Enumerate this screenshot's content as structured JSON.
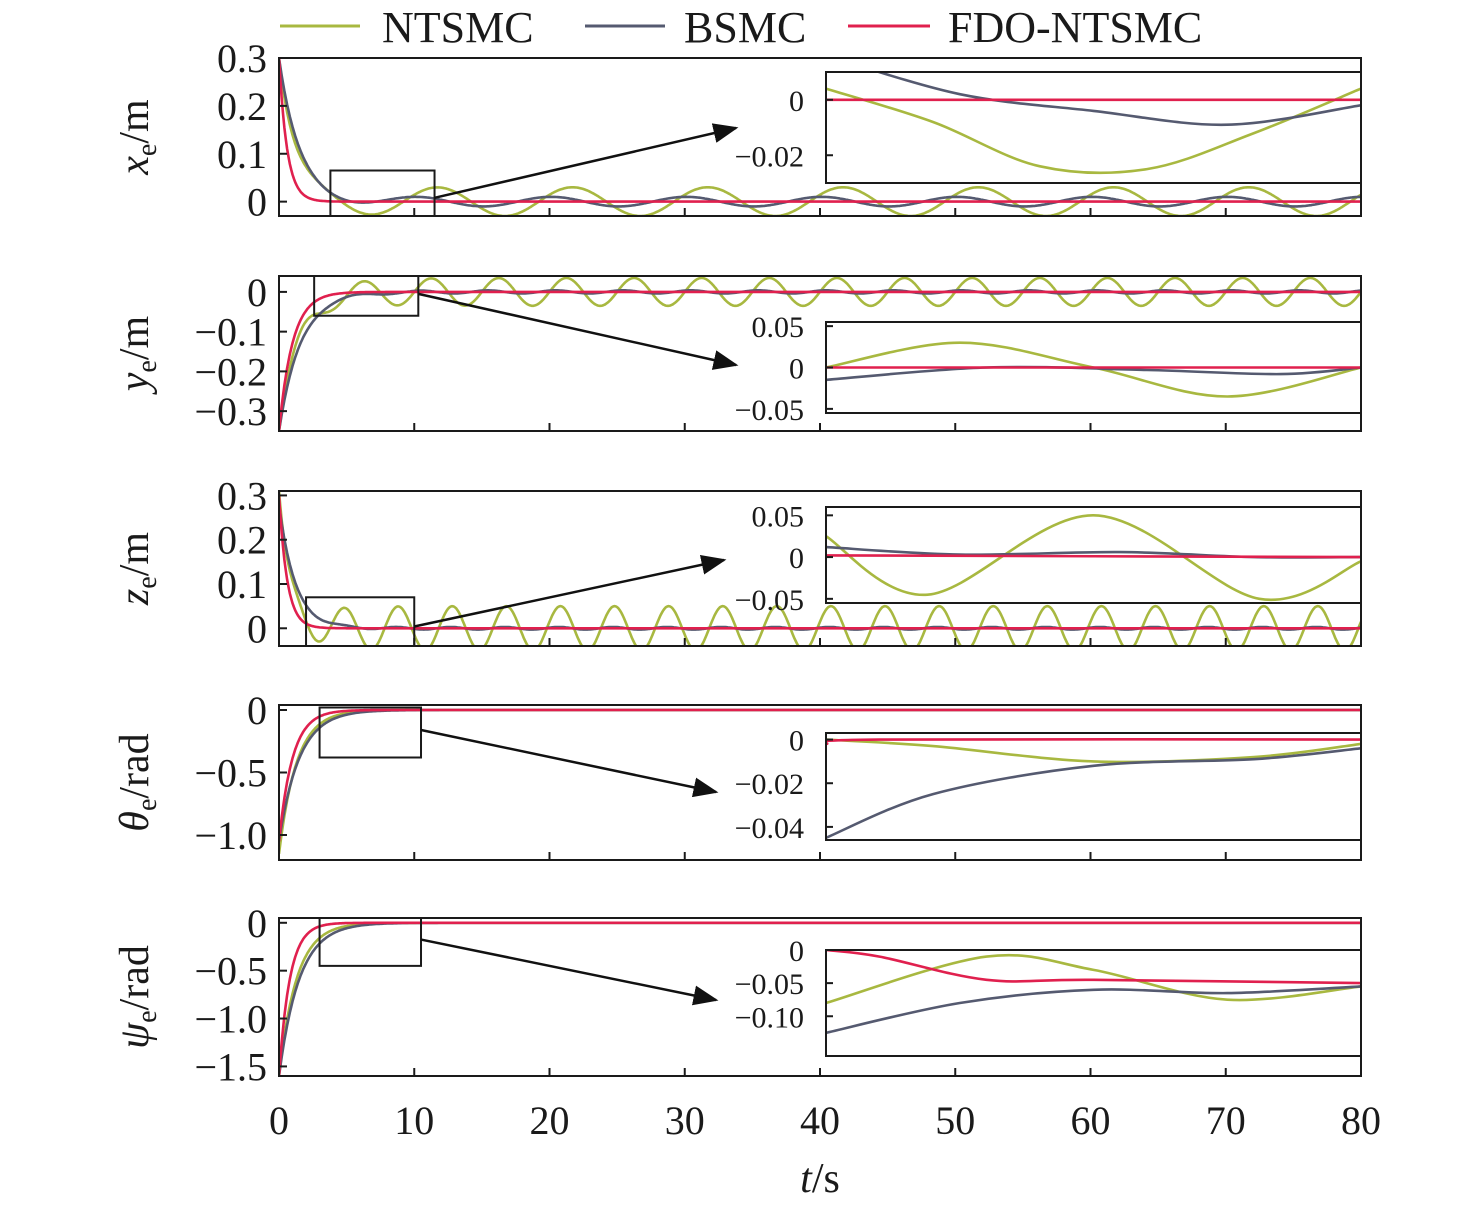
{
  "chart_data": {
    "type": "line",
    "legend": {
      "placement": "top",
      "entries": [
        {
          "name": "NTSMC",
          "color": "#a8b840"
        },
        {
          "name": "BSMC",
          "color": "#555a70"
        },
        {
          "name": "FDO-NTSMC",
          "color": "#e0204e"
        }
      ]
    },
    "x_axis": {
      "label_italic": "t",
      "label_rest": "/s",
      "range": [
        0,
        80
      ],
      "ticks": [
        0,
        10,
        20,
        30,
        40,
        50,
        60,
        70,
        80
      ],
      "tick_labels": [
        "0",
        "10",
        "20",
        "30",
        "40",
        "50",
        "60",
        "70",
        "80"
      ]
    },
    "panels": [
      {
        "id": "xe",
        "ylabel_italic": "x",
        "ylabel_sub": "e",
        "ylabel_unit": "/m",
        "ylim": [
          -0.03,
          0.3
        ],
        "yticks": [
          0,
          0.1,
          0.2,
          0.3
        ],
        "ytick_labels": [
          "0",
          "0.1",
          "0.2",
          "0.3"
        ],
        "series": {
          "NTSMC": {
            "x0": 0,
            "y0": 0.3,
            "tau": 1.2,
            "amp": 0.03,
            "period": 10,
            "phase": 0.5,
            "settle": 2.5
          },
          "BSMC": {
            "x0": 0,
            "y0": 0.3,
            "tau": 1.5,
            "amp": 0.01,
            "period": 10,
            "phase": 1.5,
            "settle": 3
          },
          "FDO-NTSMC": {
            "x0": 0,
            "y0": 0.3,
            "tau": 0.6,
            "amp": 0.0,
            "period": 10,
            "phase": 0,
            "settle": 2
          }
        },
        "zoom": {
          "source_xlim": [
            3.8,
            11.5
          ],
          "source_ylim": [
            -0.03,
            0.065
          ],
          "ylim": [
            -0.03,
            0.01
          ],
          "yticks": [
            0,
            -0.02
          ],
          "ytick_labels": [
            "0",
            "−0.02"
          ],
          "lines": {
            "NTSMC": [
              [
                0,
                0.004
              ],
              [
                0.2,
                -0.008
              ],
              [
                0.4,
                -0.024
              ],
              [
                0.6,
                -0.025
              ],
              [
                0.8,
                -0.012
              ],
              [
                1,
                0.004
              ]
            ],
            "BSMC": [
              [
                0,
                0.016
              ],
              [
                0.25,
                0.002
              ],
              [
                0.5,
                -0.004
              ],
              [
                0.75,
                -0.009
              ],
              [
                1,
                -0.002
              ]
            ],
            "FDO-NTSMC": [
              [
                0,
                0.0
              ],
              [
                1,
                0.0
              ]
            ]
          }
        }
      },
      {
        "id": "ye",
        "ylabel_italic": "y",
        "ylabel_sub": "e",
        "ylabel_unit": "/m",
        "ylim": [
          -0.35,
          0.04
        ],
        "yticks": [
          0,
          -0.1,
          -0.2,
          -0.3
        ],
        "ytick_labels": [
          "0",
          "−0.1",
          "−0.2",
          "−0.3"
        ],
        "series": {
          "NTSMC": {
            "x0": 0,
            "y0": -0.35,
            "tau": 1.4,
            "amp": 0.035,
            "period": 5,
            "phase": 0.0,
            "settle": 3
          },
          "BSMC": {
            "x0": 0,
            "y0": -0.35,
            "tau": 1.6,
            "amp": 0.004,
            "period": 5,
            "phase": 1.0,
            "settle": 3.5
          },
          "FDO-NTSMC": {
            "x0": 0,
            "y0": -0.35,
            "tau": 1.0,
            "amp": 0.0,
            "period": 5,
            "phase": 0,
            "settle": 2.5
          }
        },
        "zoom": {
          "source_xlim": [
            2.6,
            10.3
          ],
          "source_ylim": [
            -0.06,
            0.04
          ],
          "ylim": [
            -0.055,
            0.055
          ],
          "yticks": [
            0.05,
            0,
            -0.05
          ],
          "ytick_labels": [
            "0.05",
            "0",
            "−0.05"
          ],
          "lines": {
            "NTSMC": [
              [
                0,
                0.0
              ],
              [
                0.25,
                0.03
              ],
              [
                0.5,
                0.0
              ],
              [
                0.75,
                -0.035
              ],
              [
                1,
                0.0
              ]
            ],
            "BSMC": [
              [
                0,
                -0.015
              ],
              [
                0.3,
                0.0
              ],
              [
                0.6,
                -0.003
              ],
              [
                0.85,
                -0.008
              ],
              [
                1,
                0.0
              ]
            ],
            "FDO-NTSMC": [
              [
                0,
                0.0
              ],
              [
                1,
                0.0
              ]
            ]
          }
        }
      },
      {
        "id": "ze",
        "ylabel_italic": "z",
        "ylabel_sub": "e",
        "ylabel_unit": "/m",
        "ylim": [
          -0.04,
          0.31
        ],
        "yticks": [
          0,
          0.1,
          0.2,
          0.3
        ],
        "ytick_labels": [
          "0",
          "0.1",
          "0.2",
          "0.3"
        ],
        "series": {
          "NTSMC": {
            "x0": 0,
            "y0": 0.31,
            "tau": 0.8,
            "amp": 0.05,
            "period": 4,
            "phase": 0.3,
            "settle": 2
          },
          "BSMC": {
            "x0": 0,
            "y0": 0.28,
            "tau": 1.2,
            "amp": 0.003,
            "period": 4,
            "phase": 0.5,
            "settle": 3
          },
          "FDO-NTSMC": {
            "x0": 0,
            "y0": 0.3,
            "tau": 0.6,
            "amp": 0.0,
            "period": 4,
            "phase": 0,
            "settle": 2
          }
        },
        "zoom": {
          "source_xlim": [
            2.0,
            10.0
          ],
          "source_ylim": [
            -0.04,
            0.07
          ],
          "ylim": [
            -0.055,
            0.06
          ],
          "yticks": [
            0.05,
            0,
            -0.05
          ],
          "ytick_labels": [
            "0.05",
            "0",
            "−0.05"
          ],
          "lines": {
            "NTSMC": [
              [
                0,
                0.025
              ],
              [
                0.19,
                -0.045
              ],
              [
                0.5,
                0.05
              ],
              [
                0.81,
                -0.05
              ],
              [
                1,
                -0.005
              ]
            ],
            "BSMC": [
              [
                0,
                0.012
              ],
              [
                0.25,
                0.003
              ],
              [
                0.55,
                0.006
              ],
              [
                0.8,
                0.0
              ],
              [
                1,
                0.0
              ]
            ],
            "FDO-NTSMC": [
              [
                0,
                0.002
              ],
              [
                1,
                0.0
              ]
            ]
          }
        }
      },
      {
        "id": "theta",
        "ylabel_italic": "θ",
        "ylabel_sub": "e",
        "ylabel_unit": "/rad",
        "ylim": [
          -1.2,
          0.04
        ],
        "yticks": [
          0,
          -0.5,
          -1.0
        ],
        "ytick_labels": [
          "0",
          "−0.5",
          "−1.0"
        ],
        "series": {
          "NTSMC": {
            "x0": 0,
            "y0": -1.15,
            "tau": 1.3,
            "amp": 0.0,
            "period": 5,
            "phase": 0,
            "settle": 3
          },
          "BSMC": {
            "x0": 0,
            "y0": -1.05,
            "tau": 1.5,
            "amp": 0.0,
            "period": 5,
            "phase": 0,
            "settle": 3
          },
          "FDO-NTSMC": {
            "x0": 0,
            "y0": -1.05,
            "tau": 1.0,
            "amp": 0.0,
            "period": 5,
            "phase": 0,
            "settle": 2.5
          }
        },
        "zoom": {
          "source_xlim": [
            3.0,
            10.5
          ],
          "source_ylim": [
            -0.38,
            0.02
          ],
          "ylim": [
            -0.046,
            0.003
          ],
          "yticks": [
            0,
            -0.02,
            -0.04
          ],
          "ytick_labels": [
            "0",
            "−0.02",
            "−0.04"
          ],
          "lines": {
            "NTSMC": [
              [
                0,
                0.0
              ],
              [
                0.2,
                -0.003
              ],
              [
                0.5,
                -0.01
              ],
              [
                0.8,
                -0.008
              ],
              [
                1,
                -0.002
              ]
            ],
            "BSMC": [
              [
                0,
                -0.045
              ],
              [
                0.2,
                -0.025
              ],
              [
                0.5,
                -0.012
              ],
              [
                0.8,
                -0.009
              ],
              [
                1,
                -0.004
              ]
            ],
            "FDO-NTSMC": [
              [
                0,
                -0.002
              ],
              [
                0.1,
                0.0
              ],
              [
                1,
                0.0
              ]
            ]
          }
        }
      },
      {
        "id": "psi",
        "ylabel_italic": "ψ",
        "ylabel_sub": "e",
        "ylabel_unit": "/rad",
        "ylim": [
          -1.6,
          0.05
        ],
        "yticks": [
          0,
          -0.5,
          -1.0,
          -1.5
        ],
        "ytick_labels": [
          "0",
          "−0.5",
          "−1.0",
          "−1.5"
        ],
        "series": {
          "NTSMC": {
            "x0": 0,
            "y0": -1.6,
            "tau": 1.3,
            "amp": 0.0,
            "period": 5,
            "phase": 0,
            "settle": 3
          },
          "BSMC": {
            "x0": 0,
            "y0": -1.6,
            "tau": 1.5,
            "amp": 0.0,
            "period": 5,
            "phase": 0,
            "settle": 3
          },
          "FDO-NTSMC": {
            "x0": 0,
            "y0": -1.6,
            "tau": 0.8,
            "amp": 0.0,
            "period": 5,
            "phase": 0,
            "settle": 2
          }
        },
        "zoom": {
          "source_xlim": [
            3.0,
            10.5
          ],
          "source_ylim": [
            -0.45,
            0.05
          ],
          "ylim": [
            -0.16,
            0.0
          ],
          "yticks": [
            0,
            -0.05,
            -0.1
          ],
          "ytick_labels": [
            "0",
            "−0.05",
            "−0.10"
          ],
          "lines": {
            "NTSMC": [
              [
                0,
                -0.08
              ],
              [
                0.3,
                -0.01
              ],
              [
                0.5,
                -0.03
              ],
              [
                0.75,
                -0.075
              ],
              [
                1,
                -0.055
              ]
            ],
            "BSMC": [
              [
                0,
                -0.125
              ],
              [
                0.25,
                -0.08
              ],
              [
                0.5,
                -0.06
              ],
              [
                0.75,
                -0.065
              ],
              [
                1,
                -0.055
              ]
            ],
            "FDO-NTSMC": [
              [
                0,
                0.0
              ],
              [
                0.1,
                -0.01
              ],
              [
                0.3,
                -0.045
              ],
              [
                0.5,
                -0.045
              ],
              [
                1,
                -0.05
              ]
            ]
          }
        }
      }
    ]
  }
}
